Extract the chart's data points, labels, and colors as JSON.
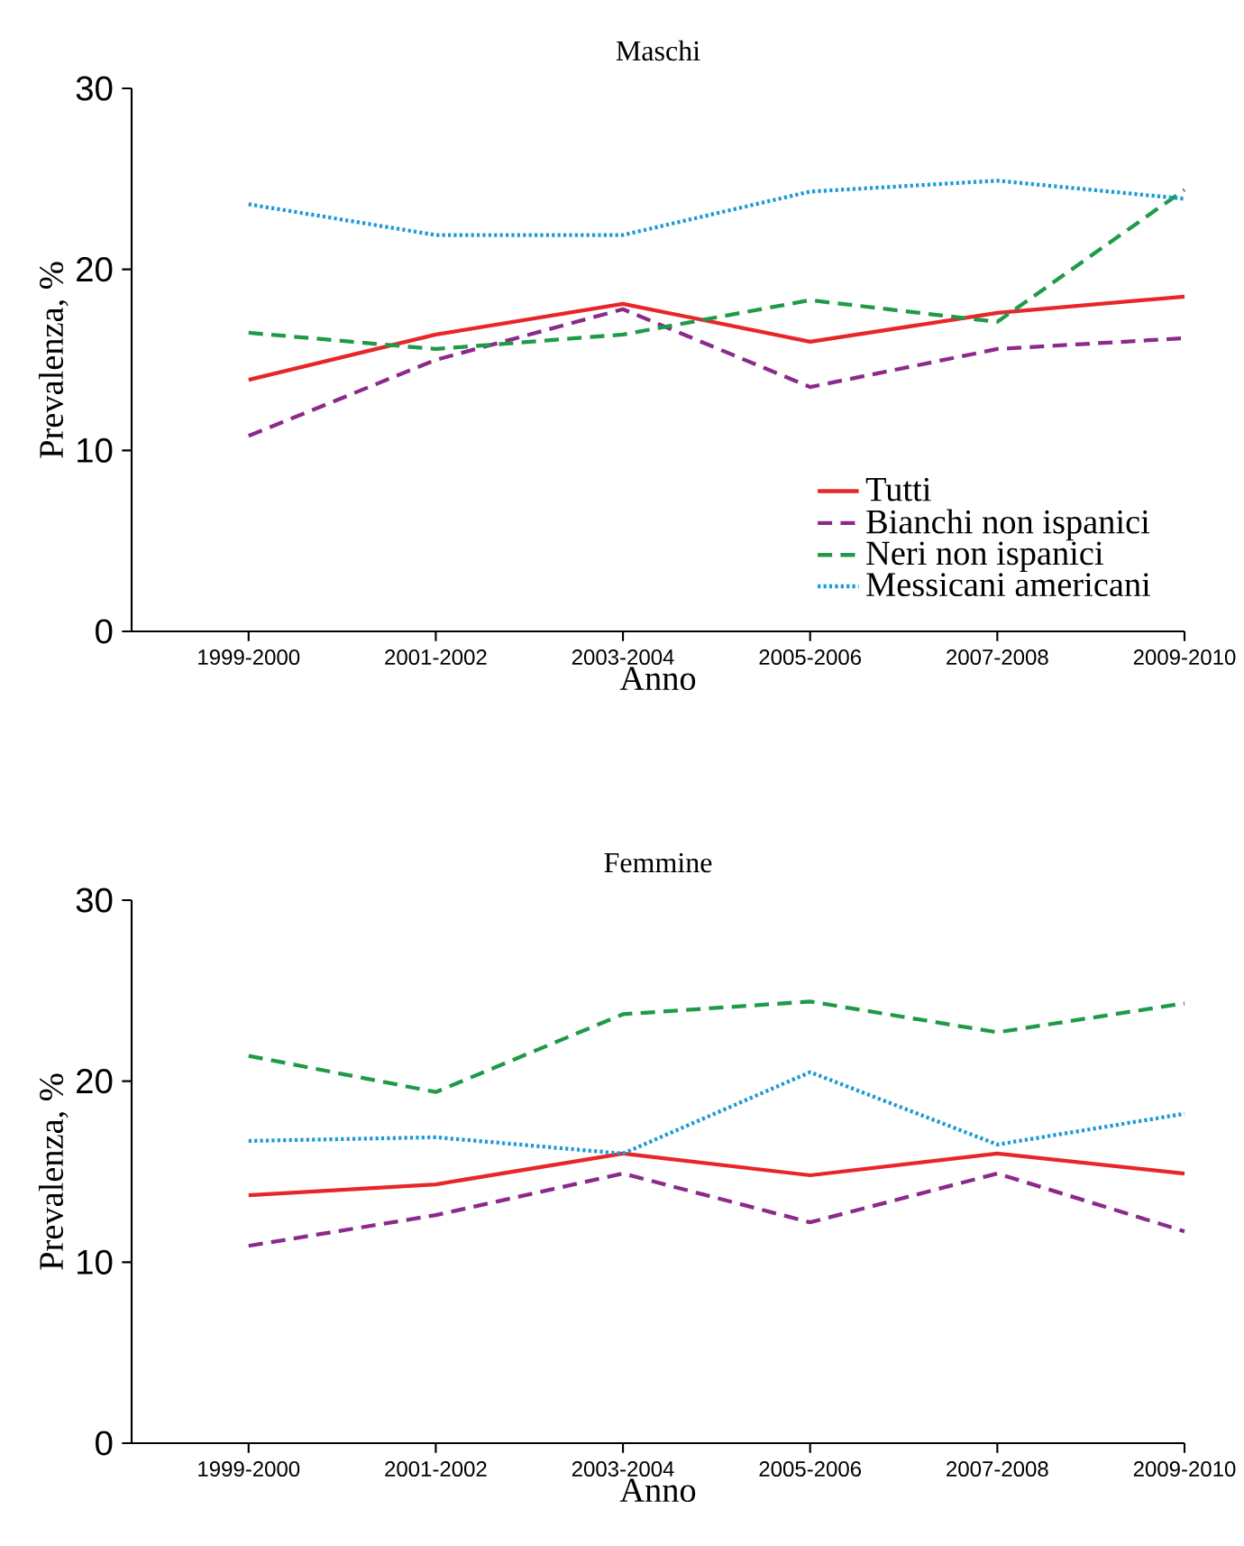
{
  "chart_data": [
    {
      "type": "line",
      "title": "Maschi",
      "xlabel": "Anno",
      "ylabel": "Prevalenza, %",
      "categories": [
        "1999-2000",
        "2001-2002",
        "2003-2004",
        "2005-2006",
        "2007-2008",
        "2009-2010"
      ],
      "ylim": [
        0,
        30
      ],
      "yticks": [
        0,
        10,
        20,
        30
      ],
      "grid": false,
      "legend": "bottom right",
      "series": [
        {
          "name": "Tutti",
          "color": "#e8262a",
          "line_style": "solid",
          "values": [
            13.9,
            16.4,
            18.1,
            16.0,
            17.6,
            18.5
          ]
        },
        {
          "name": "Bianchi non ispanici",
          "color": "#8b2a8b",
          "line_style": "dashed",
          "values": [
            10.8,
            15.0,
            17.8,
            13.5,
            15.6,
            16.2
          ]
        },
        {
          "name": "Neri non ispanici",
          "color": "#1f9a48",
          "line_style": "dashed",
          "values": [
            16.5,
            15.6,
            16.4,
            18.3,
            17.1,
            24.4
          ]
        },
        {
          "name": "Messicani americani",
          "color": "#1a9ad6",
          "line_style": "dotted",
          "values": [
            23.6,
            21.9,
            21.9,
            24.3,
            24.9,
            23.9
          ]
        }
      ]
    },
    {
      "type": "line",
      "title": "Femmine",
      "xlabel": "Anno",
      "ylabel": "Prevalenza, %",
      "categories": [
        "1999-2000",
        "2001-2002",
        "2003-2004",
        "2005-2006",
        "2007-2008",
        "2009-2010"
      ],
      "ylim": [
        0,
        30
      ],
      "yticks": [
        0,
        10,
        20,
        30
      ],
      "grid": false,
      "legend": false,
      "series": [
        {
          "color": "#e8262a",
          "line_style": "solid",
          "values": [
            13.7,
            14.3,
            16.0,
            14.8,
            16.0,
            14.9
          ]
        },
        {
          "color": "#8b2a8b",
          "line_style": "dashed",
          "values": [
            10.9,
            12.6,
            14.9,
            12.2,
            14.9,
            11.7
          ]
        },
        {
          "color": "#1f9a48",
          "line_style": "dashed",
          "values": [
            21.4,
            19.4,
            23.7,
            24.4,
            22.7,
            24.3
          ]
        },
        {
          "color": "#1a9ad6",
          "line_style": "dotted",
          "values": [
            16.7,
            16.9,
            16.0,
            20.5,
            16.5,
            18.2
          ]
        }
      ]
    }
  ]
}
